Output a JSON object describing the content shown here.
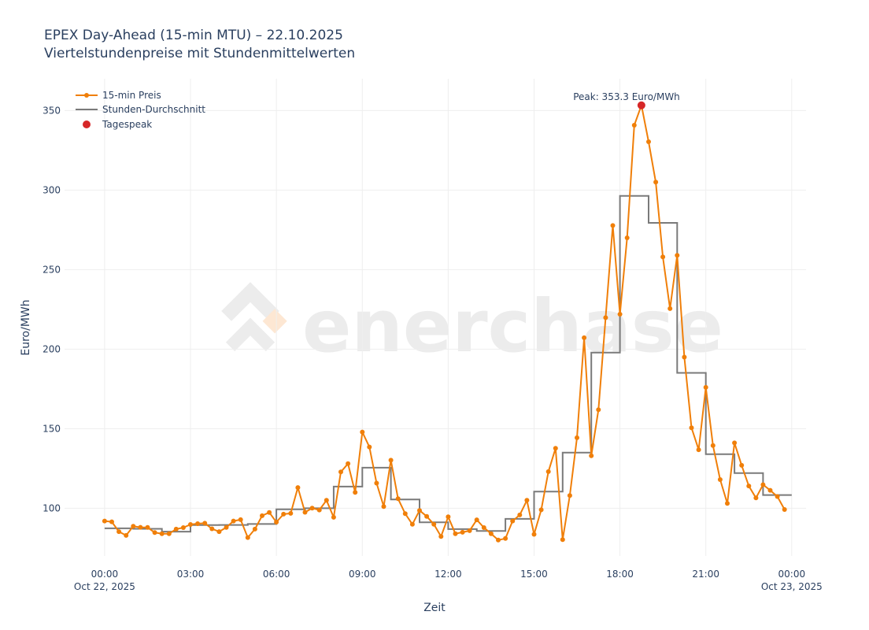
{
  "chart_data": {
    "type": "line",
    "title": "EPEX Day-Ahead (15-min MTU) – 22.10.2025",
    "subtitle": "Viertelstundenpreise mit Stundenmittelwerten",
    "xlabel": "Zeit",
    "ylabel": "Euro/MWh",
    "xlim_hours": [
      -1.4,
      24.5
    ],
    "ylim": [
      70,
      370
    ],
    "grid": true,
    "legend_position": "top-left",
    "watermark": "enerchase",
    "x_ticks": [
      {
        "h": 0,
        "label": "00:00",
        "sub": "Oct 22, 2025"
      },
      {
        "h": 3,
        "label": "03:00",
        "sub": ""
      },
      {
        "h": 6,
        "label": "06:00",
        "sub": ""
      },
      {
        "h": 9,
        "label": "09:00",
        "sub": ""
      },
      {
        "h": 12,
        "label": "12:00",
        "sub": ""
      },
      {
        "h": 15,
        "label": "15:00",
        "sub": ""
      },
      {
        "h": 18,
        "label": "18:00",
        "sub": ""
      },
      {
        "h": 21,
        "label": "21:00",
        "sub": ""
      },
      {
        "h": 24,
        "label": "00:00",
        "sub": "Oct 23, 2025"
      }
    ],
    "y_ticks": [
      100,
      150,
      200,
      250,
      300,
      350
    ],
    "series": [
      {
        "name": "15-min Preis",
        "color": "#f07f09",
        "interval_hours": 0.25,
        "values": [
          92.0,
          91.5,
          85.3,
          82.9,
          88.7,
          88.0,
          87.9,
          84.7,
          84.0,
          84.0,
          86.9,
          87.8,
          89.8,
          90.3,
          90.6,
          87.1,
          85.3,
          87.9,
          92.0,
          92.8,
          81.6,
          86.9,
          95.3,
          97.4,
          91.3,
          96.3,
          96.8,
          113.0,
          97.5,
          100.1,
          98.9,
          105.0,
          94.3,
          122.8,
          128.0,
          110.0,
          147.9,
          138.5,
          115.8,
          101.1,
          130.2,
          106.0,
          96.6,
          89.9,
          98.6,
          94.9,
          89.9,
          82.3,
          94.6,
          84.0,
          84.9,
          85.9,
          92.7,
          87.8,
          84.0,
          80.0,
          81.0,
          92.0,
          95.8,
          105.0,
          83.6,
          99.0,
          123.0,
          137.7,
          80.3,
          108.0,
          144.3,
          207.2,
          133.0,
          162.0,
          219.8,
          277.7,
          222.0,
          270.0,
          340.8,
          353.3,
          330.4,
          305.0,
          258.0,
          225.5,
          259.0,
          195.0,
          150.6,
          136.8,
          176.0,
          139.4,
          118.0,
          103.0,
          141.1,
          127.0,
          114.0,
          106.5,
          114.8,
          111.3,
          107.4,
          99.2
        ]
      },
      {
        "name": "Stunden-Durchschnitt",
        "color": "#7a7a7a",
        "interval_hours": 1,
        "values": [
          87.4,
          87.1,
          85.3,
          89.4,
          89.5,
          90.1,
          99.3,
          100.0,
          113.6,
          125.5,
          105.5,
          91.2,
          86.9,
          85.7,
          93.3,
          110.5,
          135.0,
          197.8,
          296.4,
          279.4,
          185.1,
          134.0,
          122.1,
          108.3
        ]
      }
    ],
    "peak": {
      "name": "Tagespeak",
      "color": "#d62728",
      "hour": 18.75,
      "value": 353.3,
      "label": "Peak: 353.3 Euro/MWh"
    }
  }
}
